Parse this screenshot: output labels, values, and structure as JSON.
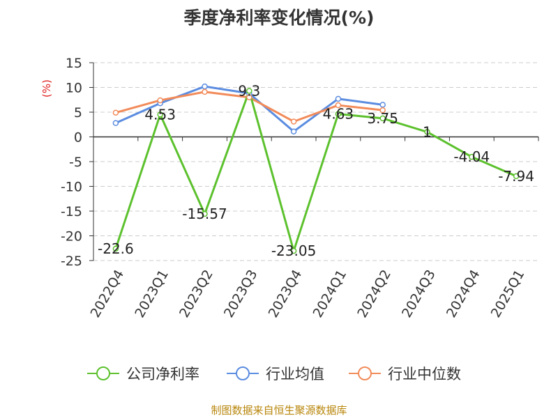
{
  "chart_data": {
    "type": "line",
    "title": "季度净利率变化情况(%)",
    "ylabel": "(%)",
    "categories": [
      "2022Q4",
      "2023Q1",
      "2023Q2",
      "2023Q3",
      "2023Q4",
      "2024Q1",
      "2024Q2",
      "2024Q3",
      "2024Q4",
      "2025Q1"
    ],
    "yticks": [
      15,
      10,
      5,
      0,
      -5,
      -10,
      -15,
      -20,
      -25
    ],
    "ylim": [
      -25,
      15
    ],
    "grid": true,
    "legend_position": "bottom",
    "series": [
      {
        "name": "公司净利率",
        "color": "#5cc12d",
        "values": [
          -22.6,
          4.53,
          -15.57,
          9.3,
          -23.05,
          4.63,
          3.75,
          1,
          -4.04,
          -7.94
        ],
        "labels": [
          "-22.6",
          "4.53",
          "-15.57",
          "9.3",
          "-23.05",
          "4.63",
          "3.75",
          "1",
          "-4.04",
          "-7.94"
        ]
      },
      {
        "name": "行业均值",
        "color": "#5b8ce0",
        "values": [
          2.8,
          6.8,
          10.2,
          8.8,
          1.1,
          7.7,
          6.5,
          null,
          null,
          null
        ]
      },
      {
        "name": "行业中位数",
        "color": "#f28b5a",
        "values": [
          4.9,
          7.4,
          9.1,
          8.0,
          3.1,
          6.4,
          5.4,
          null,
          null,
          null
        ]
      }
    ]
  },
  "source": "制图数据来自恒生聚源数据库"
}
